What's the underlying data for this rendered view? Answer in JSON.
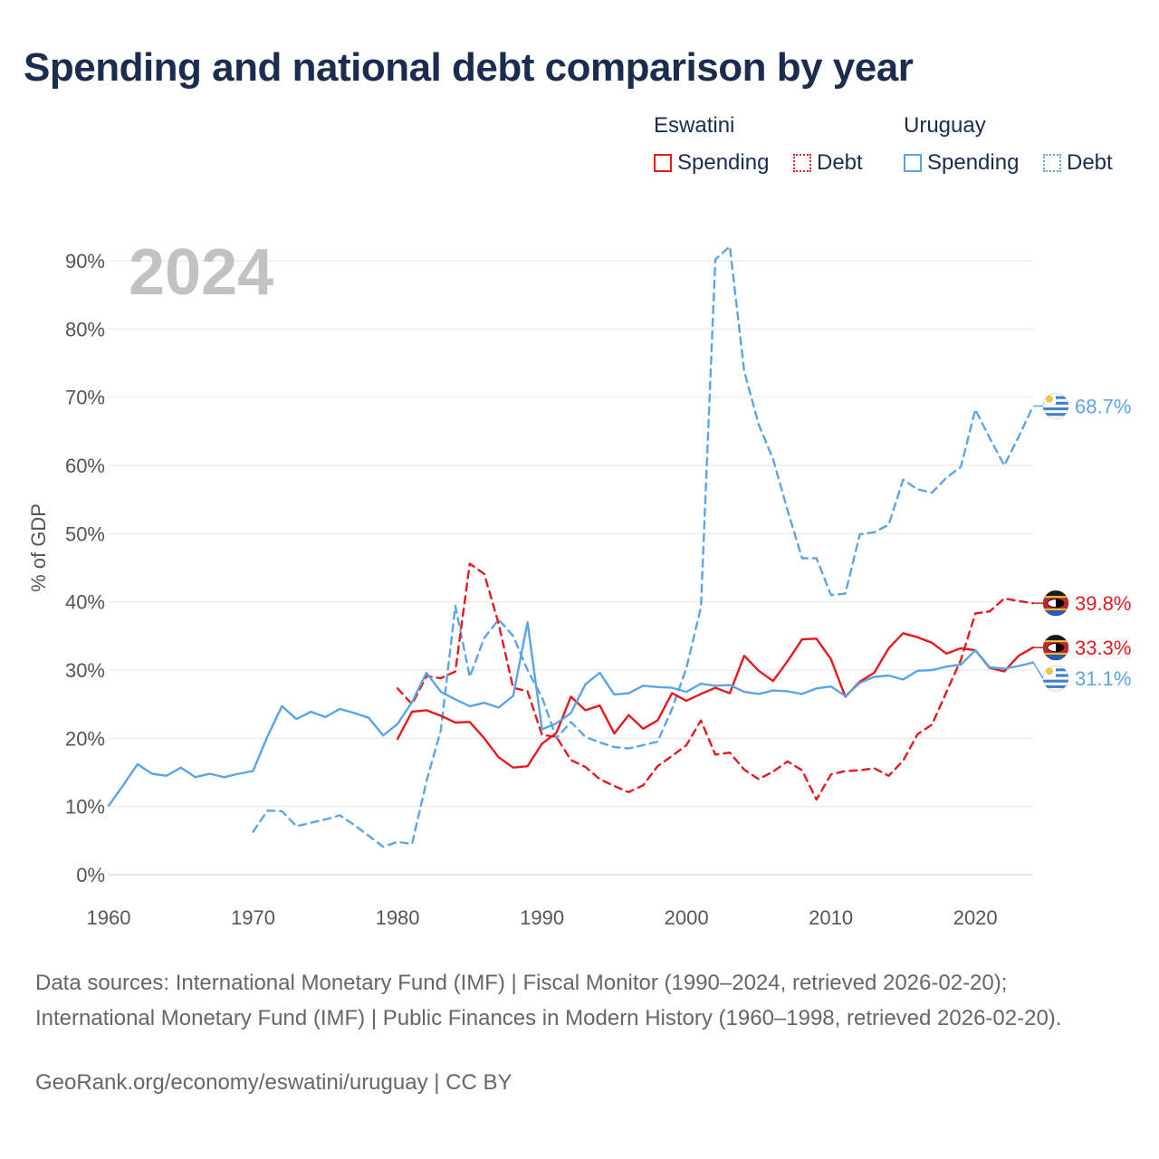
{
  "title": "Spending and national debt comparison by year",
  "legend": {
    "groups": [
      {
        "name": "Eswatini",
        "color": "#e41a1c",
        "items": [
          {
            "label": "Spending",
            "style": "solid"
          },
          {
            "label": "Debt",
            "style": "dotted"
          }
        ]
      },
      {
        "name": "Uruguay",
        "color": "#5ba4e5",
        "items": [
          {
            "label": "Spending",
            "style": "solid"
          },
          {
            "label": "Debt",
            "style": "dotted"
          }
        ]
      }
    ]
  },
  "footer": {
    "sources": "Data sources: International Monetary Fund (IMF) | Fiscal Monitor (1990–2024, retrieved 2026-02-20); International Monetary Fund (IMF) | Public Finances in Modern History (1960–1998, retrieved 2026-02-20).",
    "credit": "GeoRank.org/economy/eswatini/uruguay | CC BY"
  },
  "chart_data": {
    "type": "line",
    "title": "Spending and national debt comparison by year",
    "year_label": "2024",
    "xlabel": "",
    "ylabel": "% of GDP",
    "xlim": [
      1960,
      2024
    ],
    "ylim": [
      0,
      90
    ],
    "xticks": [
      1960,
      1970,
      1980,
      1990,
      2000,
      2010,
      2020
    ],
    "yticks": [
      0,
      10,
      20,
      30,
      40,
      50,
      60,
      70,
      80,
      90
    ],
    "ytick_labels": [
      "0%",
      "10%",
      "20%",
      "30%",
      "40%",
      "50%",
      "60%",
      "70%",
      "80%",
      "90%"
    ],
    "grid": true,
    "series": [
      {
        "name": "Uruguay Debt",
        "color": "#5ba4e5",
        "dashed": true,
        "end_label": "68.7%",
        "flag": "uruguay",
        "points": [
          [
            1970,
            6.3
          ],
          [
            1971,
            9.4
          ],
          [
            1972,
            9.3
          ],
          [
            1973,
            7.1
          ],
          [
            1974,
            7.6
          ],
          [
            1975,
            8.1
          ],
          [
            1976,
            8.7
          ],
          [
            1977,
            7.3
          ],
          [
            1978,
            5.7
          ],
          [
            1979,
            4.1
          ],
          [
            1980,
            4.8
          ],
          [
            1981,
            4.5
          ],
          [
            1982,
            13.7
          ],
          [
            1983,
            21.2
          ],
          [
            1984,
            39.4
          ],
          [
            1985,
            29.0
          ],
          [
            1986,
            34.7
          ],
          [
            1987,
            37.4
          ],
          [
            1988,
            35.0
          ],
          [
            1989,
            30.0
          ],
          [
            1990,
            26.0
          ],
          [
            1991,
            20.0
          ],
          [
            1992,
            22.4
          ],
          [
            1993,
            20.2
          ],
          [
            1994,
            19.4
          ],
          [
            1995,
            18.7
          ],
          [
            1996,
            18.5
          ],
          [
            1997,
            19.0
          ],
          [
            1998,
            19.5
          ],
          [
            1999,
            24.3
          ],
          [
            2000,
            30.3
          ],
          [
            2001,
            39.2
          ],
          [
            2002,
            90.2
          ],
          [
            2003,
            92.1
          ],
          [
            2004,
            73.8
          ],
          [
            2005,
            66.0
          ],
          [
            2006,
            60.9
          ],
          [
            2007,
            53.4
          ],
          [
            2008,
            46.4
          ],
          [
            2009,
            46.4
          ],
          [
            2010,
            41.0
          ],
          [
            2011,
            41.2
          ],
          [
            2012,
            49.9
          ],
          [
            2013,
            50.2
          ],
          [
            2014,
            51.3
          ],
          [
            2015,
            57.9
          ],
          [
            2016,
            56.5
          ],
          [
            2017,
            56.0
          ],
          [
            2018,
            58.2
          ],
          [
            2019,
            59.8
          ],
          [
            2020,
            68.2
          ],
          [
            2021,
            64.0
          ],
          [
            2022,
            60.0
          ],
          [
            2023,
            64.2
          ],
          [
            2024,
            68.7
          ]
        ]
      },
      {
        "name": "Eswatini Debt",
        "color": "#e41a1c",
        "dashed": true,
        "end_label": "39.8%",
        "flag": "eswatini",
        "points": [
          [
            1980,
            27.3
          ],
          [
            1981,
            25.0
          ],
          [
            1982,
            29.1
          ],
          [
            1983,
            28.8
          ],
          [
            1984,
            29.8
          ],
          [
            1985,
            45.6
          ],
          [
            1986,
            44.1
          ],
          [
            1987,
            36.8
          ],
          [
            1988,
            27.4
          ],
          [
            1989,
            26.9
          ],
          [
            1990,
            20.5
          ],
          [
            1991,
            20.2
          ],
          [
            1992,
            16.8
          ],
          [
            1993,
            15.8
          ],
          [
            1994,
            14.0
          ],
          [
            1995,
            13.0
          ],
          [
            1996,
            12.1
          ],
          [
            1997,
            13.1
          ],
          [
            1998,
            15.9
          ],
          [
            1999,
            17.4
          ],
          [
            2000,
            19.0
          ],
          [
            2001,
            22.6
          ],
          [
            2002,
            17.6
          ],
          [
            2003,
            17.9
          ],
          [
            2004,
            15.4
          ],
          [
            2005,
            14.0
          ],
          [
            2006,
            15.1
          ],
          [
            2007,
            16.6
          ],
          [
            2008,
            15.3
          ],
          [
            2009,
            11.0
          ],
          [
            2010,
            14.7
          ],
          [
            2011,
            15.2
          ],
          [
            2012,
            15.3
          ],
          [
            2013,
            15.6
          ],
          [
            2014,
            14.5
          ],
          [
            2015,
            16.7
          ],
          [
            2016,
            20.6
          ],
          [
            2017,
            22.0
          ],
          [
            2018,
            26.8
          ],
          [
            2019,
            31.5
          ],
          [
            2020,
            38.3
          ],
          [
            2021,
            38.6
          ],
          [
            2022,
            40.5
          ],
          [
            2023,
            40.1
          ],
          [
            2024,
            39.8
          ]
        ]
      },
      {
        "name": "Eswatini Spending",
        "color": "#e41a1c",
        "dashed": false,
        "end_label": "33.3%",
        "flag": "eswatini",
        "points": [
          [
            1980,
            19.9
          ],
          [
            1981,
            23.9
          ],
          [
            1982,
            24.1
          ],
          [
            1983,
            23.3
          ],
          [
            1984,
            22.3
          ],
          [
            1985,
            22.4
          ],
          [
            1986,
            20.0
          ],
          [
            1987,
            17.2
          ],
          [
            1988,
            15.7
          ],
          [
            1989,
            15.9
          ],
          [
            1990,
            19.2
          ],
          [
            1991,
            20.8
          ],
          [
            1992,
            26.1
          ],
          [
            1993,
            24.1
          ],
          [
            1994,
            24.8
          ],
          [
            1995,
            20.7
          ],
          [
            1996,
            23.4
          ],
          [
            1997,
            21.4
          ],
          [
            1998,
            22.6
          ],
          [
            1999,
            26.6
          ],
          [
            2000,
            25.5
          ],
          [
            2001,
            26.5
          ],
          [
            2002,
            27.4
          ],
          [
            2003,
            26.6
          ],
          [
            2004,
            32.1
          ],
          [
            2005,
            29.9
          ],
          [
            2006,
            28.4
          ],
          [
            2007,
            31.3
          ],
          [
            2008,
            34.5
          ],
          [
            2009,
            34.6
          ],
          [
            2010,
            31.6
          ],
          [
            2011,
            26.1
          ],
          [
            2012,
            28.3
          ],
          [
            2013,
            29.6
          ],
          [
            2014,
            33.2
          ],
          [
            2015,
            35.4
          ],
          [
            2016,
            34.8
          ],
          [
            2017,
            34.0
          ],
          [
            2018,
            32.4
          ],
          [
            2019,
            33.2
          ],
          [
            2020,
            32.9
          ],
          [
            2021,
            30.3
          ],
          [
            2022,
            29.8
          ],
          [
            2023,
            32.1
          ],
          [
            2024,
            33.3
          ]
        ]
      },
      {
        "name": "Uruguay Spending",
        "color": "#5ba4e5",
        "dashed": false,
        "end_label": "31.1%",
        "flag": "uruguay",
        "points": [
          [
            1960,
            10.1
          ],
          [
            1961,
            13.1
          ],
          [
            1962,
            16.2
          ],
          [
            1963,
            14.8
          ],
          [
            1964,
            14.5
          ],
          [
            1965,
            15.7
          ],
          [
            1966,
            14.3
          ],
          [
            1967,
            14.8
          ],
          [
            1968,
            14.3
          ],
          [
            1969,
            14.8
          ],
          [
            1970,
            15.2
          ],
          [
            1971,
            20.3
          ],
          [
            1972,
            24.7
          ],
          [
            1973,
            22.8
          ],
          [
            1974,
            23.9
          ],
          [
            1975,
            23.1
          ],
          [
            1976,
            24.3
          ],
          [
            1977,
            23.7
          ],
          [
            1978,
            23.0
          ],
          [
            1979,
            20.4
          ],
          [
            1980,
            22.1
          ],
          [
            1981,
            25.3
          ],
          [
            1982,
            29.6
          ],
          [
            1983,
            26.8
          ],
          [
            1984,
            25.7
          ],
          [
            1985,
            24.7
          ],
          [
            1986,
            25.2
          ],
          [
            1987,
            24.5
          ],
          [
            1988,
            26.2
          ],
          [
            1989,
            37.0
          ],
          [
            1990,
            21.3
          ],
          [
            1991,
            22.2
          ],
          [
            1992,
            23.7
          ],
          [
            1993,
            27.9
          ],
          [
            1994,
            29.6
          ],
          [
            1995,
            26.4
          ],
          [
            1996,
            26.6
          ],
          [
            1997,
            27.7
          ],
          [
            1998,
            27.5
          ],
          [
            1999,
            27.4
          ],
          [
            2000,
            26.8
          ],
          [
            2001,
            28.0
          ],
          [
            2002,
            27.7
          ],
          [
            2003,
            27.8
          ],
          [
            2004,
            26.8
          ],
          [
            2005,
            26.5
          ],
          [
            2006,
            27.0
          ],
          [
            2007,
            26.9
          ],
          [
            2008,
            26.5
          ],
          [
            2009,
            27.3
          ],
          [
            2010,
            27.6
          ],
          [
            2011,
            26.2
          ],
          [
            2012,
            28.1
          ],
          [
            2013,
            29.0
          ],
          [
            2014,
            29.2
          ],
          [
            2015,
            28.6
          ],
          [
            2016,
            29.9
          ],
          [
            2017,
            30.0
          ],
          [
            2018,
            30.5
          ],
          [
            2019,
            30.8
          ],
          [
            2020,
            32.9
          ],
          [
            2021,
            30.4
          ],
          [
            2022,
            30.2
          ],
          [
            2023,
            30.6
          ],
          [
            2024,
            31.1
          ]
        ]
      }
    ]
  }
}
